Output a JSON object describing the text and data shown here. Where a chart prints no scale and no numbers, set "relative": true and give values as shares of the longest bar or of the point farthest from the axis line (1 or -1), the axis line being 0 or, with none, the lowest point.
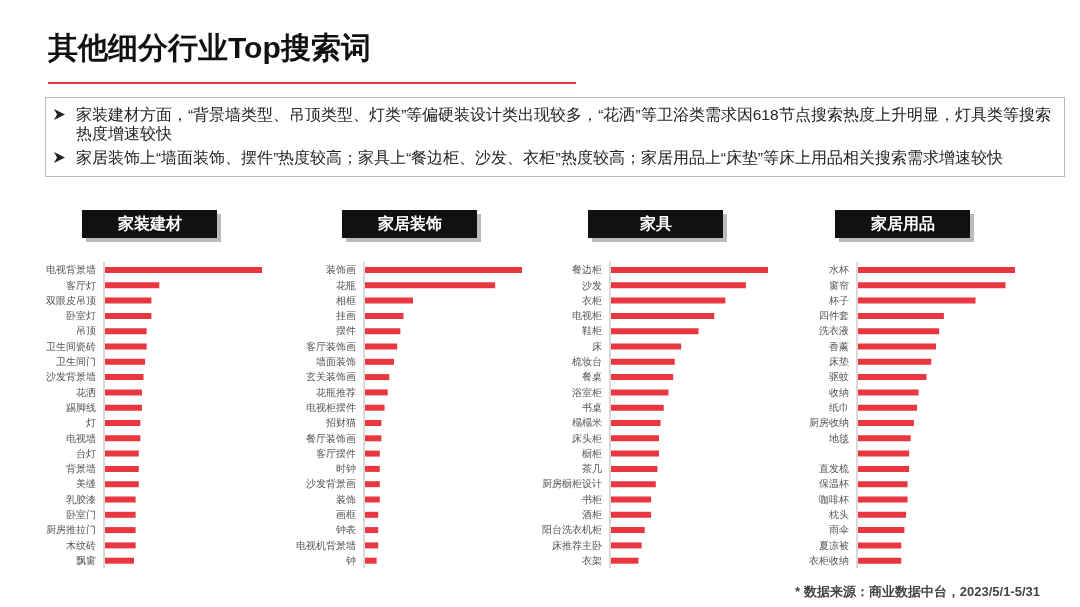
{
  "chart_data": [
    {
      "type": "other",
      "title": "其他细分行业Top搜索词",
      "annotations": [
        "家装建材方面，“背景墙类型、吊顶类型、灯类”等偏硬装设计类出现较多，“花洒”等卫浴类需求因618节点搜索热度上升明显，灯具类等搜索热度增速较快",
        "家居装饰上“墙面装饰、摆件”热度较高；家具上“餐边柜、沙发、衣柜”热度较高；家居用品上“床垫”等床上用品相关搜索需求增速较快",
        "* 数据来源：商业数据中台，2023/5/1-5/31"
      ]
    },
    {
      "type": "bar",
      "orientation": "horizontal",
      "relative": true,
      "title": "家装建材",
      "color": "#e8373f",
      "categories": [
        "电视背景墙",
        "客厅灯",
        "双眼皮吊顶",
        "卧室灯",
        "吊顶",
        "卫生间瓷砖",
        "卫生间门",
        "沙发背景墙",
        "花洒",
        "踢脚线",
        "灯",
        "电视墙",
        "台灯",
        "背景墙",
        "美缝",
        "乳胶漆",
        "卧室门",
        "厨房推拉门",
        "木纹砖",
        "飘窗"
      ],
      "values": [
        1,
        0.35,
        0.3,
        0.3,
        0.27,
        0.27,
        0.26,
        0.25,
        0.24,
        0.24,
        0.23,
        0.23,
        0.22,
        0.22,
        0.22,
        0.2,
        0.2,
        0.2,
        0.2,
        0.19
      ]
    },
    {
      "type": "bar",
      "orientation": "horizontal",
      "relative": true,
      "title": "家居装饰",
      "color": "#e8373f",
      "categories": [
        "装饰画",
        "花瓶",
        "相框",
        "挂画",
        "摆件",
        "客厅装饰画",
        "墙面装饰",
        "玄关装饰画",
        "花瓶推荐",
        "电视柜摆件",
        "招财猫",
        "餐厅装饰画",
        "客厅摆件",
        "时钟",
        "沙发背景画",
        "装饰",
        "画框",
        "钟表",
        "电视机背景墙",
        "钟"
      ],
      "values": [
        1,
        0.83,
        0.31,
        0.25,
        0.23,
        0.21,
        0.19,
        0.16,
        0.15,
        0.13,
        0.11,
        0.11,
        0.1,
        0.1,
        0.1,
        0.1,
        0.09,
        0.09,
        0.09,
        0.08
      ]
    },
    {
      "type": "bar",
      "orientation": "horizontal",
      "relative": true,
      "title": "家具",
      "color": "#e8373f",
      "categories": [
        "餐边柜",
        "沙发",
        "衣柜",
        "电视柜",
        "鞋柜",
        "床",
        "梳妆台",
        "餐桌",
        "浴室柜",
        "书桌",
        "榻榻米",
        "床头柜",
        "橱柜",
        "茶几",
        "厨房橱柜设计",
        "书柜",
        "酒柜",
        "阳台洗衣机柜",
        "床推荐主卧",
        "衣架"
      ],
      "values": [
        1,
        0.86,
        0.73,
        0.66,
        0.56,
        0.45,
        0.41,
        0.4,
        0.37,
        0.34,
        0.32,
        0.31,
        0.31,
        0.3,
        0.29,
        0.26,
        0.26,
        0.22,
        0.2,
        0.18
      ]
    },
    {
      "type": "bar",
      "orientation": "horizontal",
      "relative": true,
      "title": "家居用品",
      "color": "#e8373f",
      "categories": [
        "水杯",
        "窗帘",
        "杯子",
        "四件套",
        "洗衣液",
        "香薰",
        "床垫",
        "驱蚊",
        "收纳",
        "纸巾",
        "厨房收纳",
        "地毯",
        null,
        "直发梳",
        "保温杯",
        "咖啡杯",
        "枕头",
        "雨伞",
        "夏凉被",
        "衣柜收纳"
      ],
      "values": [
        1,
        0.94,
        0.75,
        0.55,
        0.52,
        0.5,
        0.47,
        0.44,
        0.39,
        0.38,
        0.36,
        0.34,
        0.33,
        0.33,
        0.32,
        0.32,
        0.31,
        0.3,
        0.28,
        0.28
      ]
    }
  ]
}
